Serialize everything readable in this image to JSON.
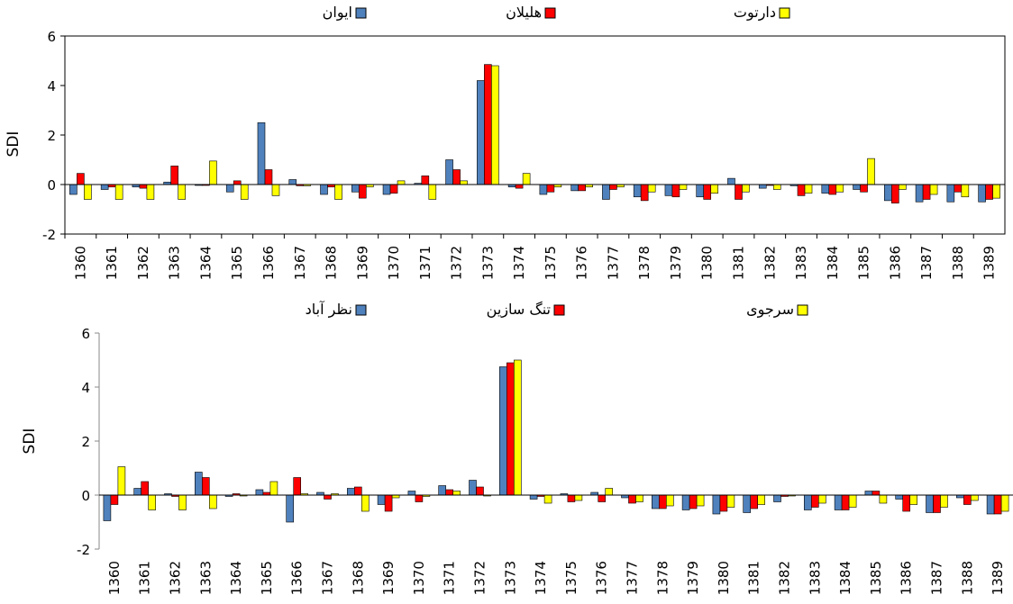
{
  "chart_data": [
    {
      "type": "bar",
      "title": "",
      "xlabel": "",
      "ylabel": "SDI",
      "ylim": [
        -2,
        6
      ],
      "yticks": [
        6,
        4,
        2,
        0,
        -2
      ],
      "grid": false,
      "legend_position": "top",
      "categories": [
        "1360",
        "1361",
        "1362",
        "1363",
        "1364",
        "1365",
        "1366",
        "1367",
        "1368",
        "1369",
        "1370",
        "1371",
        "1372",
        "1373",
        "1374",
        "1375",
        "1376",
        "1377",
        "1378",
        "1379",
        "1380",
        "1381",
        "1382",
        "1383",
        "1384",
        "1385",
        "1386",
        "1387",
        "1388",
        "1389"
      ],
      "series": [
        {
          "name": "ایوان",
          "color": "#4F81BD",
          "values": [
            -0.4,
            -0.2,
            -0.1,
            0.1,
            0.0,
            -0.3,
            2.5,
            0.2,
            -0.4,
            -0.3,
            -0.4,
            0.05,
            1.0,
            4.2,
            -0.1,
            -0.4,
            -0.25,
            -0.6,
            -0.5,
            -0.45,
            -0.5,
            0.25,
            -0.15,
            -0.05,
            -0.35,
            -0.2,
            -0.65,
            -0.7,
            -0.7,
            -0.7
          ]
        },
        {
          "name": "هلیلان",
          "color": "#FF0000",
          "values": [
            0.45,
            -0.1,
            -0.15,
            0.75,
            0.0,
            0.15,
            0.6,
            -0.05,
            -0.1,
            -0.55,
            -0.35,
            0.35,
            0.6,
            4.85,
            -0.15,
            -0.3,
            -0.25,
            -0.2,
            -0.65,
            -0.5,
            -0.6,
            -0.6,
            0.0,
            -0.45,
            -0.4,
            -0.3,
            -0.75,
            -0.6,
            -0.3,
            -0.6
          ]
        },
        {
          "name": "دارتوت",
          "color": "#FFFF00",
          "values": [
            -0.6,
            -0.6,
            -0.6,
            -0.6,
            0.95,
            -0.6,
            -0.45,
            -0.05,
            -0.6,
            -0.1,
            0.15,
            -0.6,
            0.15,
            4.8,
            0.45,
            -0.1,
            -0.1,
            -0.1,
            -0.3,
            -0.2,
            -0.35,
            -0.3,
            -0.2,
            -0.35,
            -0.3,
            1.05,
            -0.2,
            -0.4,
            -0.5,
            -0.55
          ]
        }
      ]
    },
    {
      "type": "bar",
      "title": "",
      "xlabel": "",
      "ylabel": "SDI",
      "ylim": [
        -2,
        6
      ],
      "yticks": [
        6,
        4,
        2,
        0,
        -2
      ],
      "grid": false,
      "legend_position": "top",
      "categories": [
        "1360",
        "1361",
        "1362",
        "1363",
        "1364",
        "1365",
        "1366",
        "1367",
        "1368",
        "1369",
        "1370",
        "1371",
        "1372",
        "1373",
        "1374",
        "1375",
        "1376",
        "1377",
        "1378",
        "1379",
        "1380",
        "1381",
        "1382",
        "1383",
        "1384",
        "1385",
        "1386",
        "1387",
        "1388",
        "1389"
      ],
      "series": [
        {
          "name": "نظر آباد",
          "color": "#4F81BD",
          "values": [
            -0.95,
            0.25,
            0.05,
            0.85,
            -0.05,
            0.2,
            -1.0,
            0.1,
            0.25,
            -0.35,
            0.15,
            0.35,
            0.55,
            4.75,
            -0.15,
            0.05,
            0.1,
            -0.1,
            -0.5,
            -0.55,
            -0.7,
            -0.65,
            -0.25,
            -0.55,
            -0.55,
            0.15,
            -0.15,
            -0.65,
            -0.1,
            -0.7
          ]
        },
        {
          "name": "تنگ سازین",
          "color": "#FF0000",
          "values": [
            -0.35,
            0.5,
            -0.05,
            0.65,
            0.05,
            0.1,
            0.65,
            -0.15,
            0.3,
            -0.6,
            -0.25,
            0.2,
            0.3,
            4.9,
            -0.05,
            -0.25,
            -0.25,
            -0.3,
            -0.5,
            -0.5,
            -0.6,
            -0.5,
            -0.05,
            -0.45,
            -0.55,
            0.15,
            -0.6,
            -0.65,
            -0.35,
            -0.7
          ]
        },
        {
          "name": "سرجوی",
          "color": "#FFFF00",
          "values": [
            1.05,
            -0.55,
            -0.55,
            -0.5,
            0.0,
            0.5,
            0.05,
            0.05,
            -0.6,
            -0.1,
            -0.05,
            0.15,
            0.0,
            5.0,
            -0.3,
            -0.2,
            0.25,
            -0.25,
            -0.4,
            -0.4,
            -0.45,
            -0.35,
            0.0,
            -0.3,
            -0.45,
            -0.3,
            -0.35,
            -0.45,
            -0.2,
            -0.6
          ]
        }
      ]
    }
  ]
}
